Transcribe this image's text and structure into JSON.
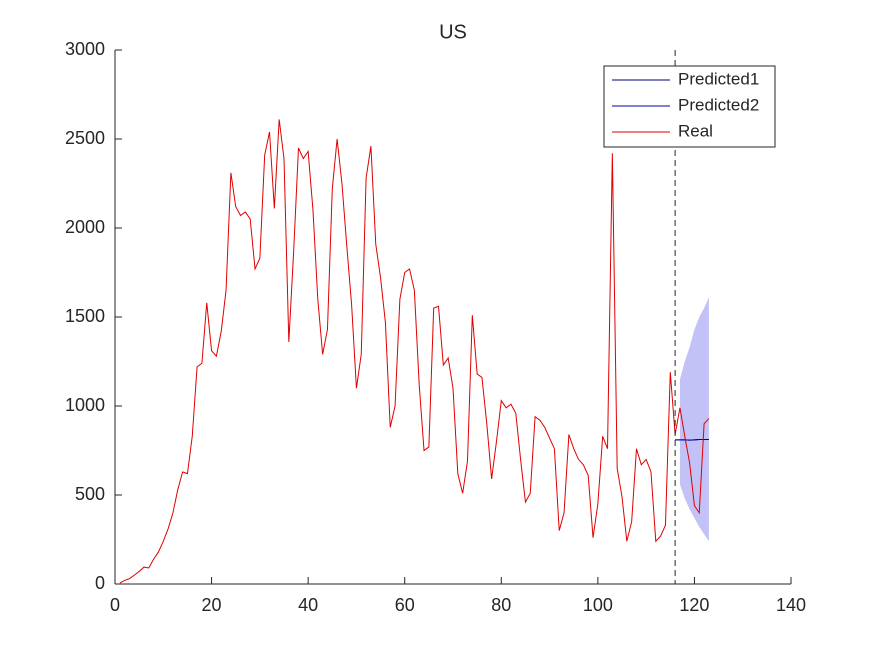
{
  "chart_data": {
    "type": "line",
    "title": "US",
    "xlim": [
      0,
      140
    ],
    "xticks": [
      0,
      20,
      40,
      60,
      80,
      100,
      120,
      140
    ],
    "ylim": [
      0,
      3000
    ],
    "yticks": [
      0,
      500,
      1000,
      1500,
      2000,
      2500,
      3000
    ],
    "legend": "northeast",
    "vline": 116,
    "band": {
      "color": "#b3b3f5",
      "x": [
        117,
        118,
        119,
        120,
        121,
        122,
        123
      ],
      "upper": [
        1150,
        1250,
        1330,
        1430,
        1500,
        1550,
        1610
      ],
      "lower": [
        560,
        480,
        420,
        370,
        320,
        280,
        240
      ]
    },
    "series": [
      {
        "name": "Predicted1",
        "color": "#00007f",
        "x": [
          116,
          117,
          118,
          119,
          120,
          121,
          122,
          123
        ],
        "values": [
          810,
          810,
          810,
          808,
          810,
          812,
          812,
          812
        ]
      },
      {
        "name": "Predicted2",
        "color": "#0000a8",
        "x": [
          116,
          117,
          118,
          119,
          120,
          121,
          122,
          123
        ],
        "values": [
          810,
          810,
          810,
          808,
          810,
          812,
          812,
          812
        ]
      },
      {
        "name": "Real",
        "color": "#e00000",
        "x": [
          1,
          2,
          3,
          4,
          5,
          6,
          7,
          8,
          9,
          10,
          11,
          12,
          13,
          14,
          15,
          16,
          17,
          18,
          19,
          20,
          21,
          22,
          23,
          24,
          25,
          26,
          27,
          28,
          29,
          30,
          31,
          32,
          33,
          34,
          35,
          36,
          37,
          38,
          39,
          40,
          41,
          42,
          43,
          44,
          45,
          46,
          47,
          48,
          49,
          50,
          51,
          52,
          53,
          54,
          55,
          56,
          57,
          58,
          59,
          60,
          61,
          62,
          63,
          64,
          65,
          66,
          67,
          68,
          69,
          70,
          71,
          72,
          73,
          74,
          75,
          76,
          77,
          78,
          79,
          80,
          81,
          82,
          83,
          84,
          85,
          86,
          87,
          88,
          89,
          90,
          91,
          92,
          93,
          94,
          95,
          96,
          97,
          98,
          99,
          100,
          101,
          102,
          103,
          104,
          105,
          106,
          107,
          108,
          109,
          110,
          111,
          112,
          113,
          114,
          115,
          116,
          117,
          118,
          119,
          120,
          121,
          122,
          123
        ],
        "values": [
          5,
          20,
          30,
          50,
          70,
          95,
          90,
          140,
          180,
          240,
          310,
          400,
          530,
          630,
          620,
          830,
          1220,
          1240,
          1580,
          1310,
          1280,
          1420,
          1650,
          2310,
          2120,
          2070,
          2090,
          2050,
          1770,
          1830,
          2410,
          2540,
          2110,
          2610,
          2390,
          1360,
          1870,
          2450,
          2390,
          2430,
          2100,
          1600,
          1290,
          1430,
          2220,
          2500,
          2250,
          1900,
          1570,
          1100,
          1290,
          2280,
          2460,
          1910,
          1720,
          1470,
          880,
          1000,
          1600,
          1750,
          1770,
          1650,
          1120,
          750,
          770,
          1550,
          1560,
          1230,
          1270,
          1100,
          620,
          510,
          690,
          1510,
          1180,
          1160,
          900,
          590,
          800,
          1030,
          990,
          1010,
          960,
          700,
          460,
          510,
          940,
          920,
          880,
          820,
          760,
          300,
          400,
          840,
          760,
          700,
          670,
          610,
          260,
          450,
          830,
          760,
          2420,
          650,
          490,
          240,
          350,
          760,
          670,
          700,
          630,
          240,
          270,
          330,
          1190,
          840,
          990,
          830,
          680,
          440,
          400,
          900,
          930
        ]
      }
    ]
  }
}
